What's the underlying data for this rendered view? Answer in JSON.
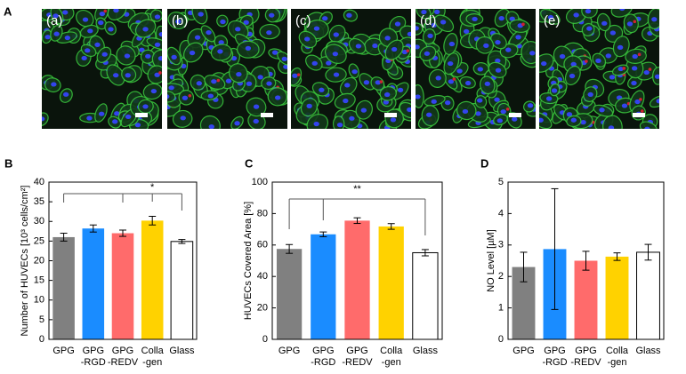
{
  "figure": {
    "panel_a": {
      "label": "A",
      "image_labels": [
        "(a)",
        "(b)",
        "(c)",
        "(d)",
        "(e)"
      ]
    }
  },
  "chart_data": [
    {
      "type": "bar",
      "panel_label": "B",
      "y_label": "Number of HUVECs [10³ cells/cm²]",
      "categories": [
        [
          "GPG"
        ],
        [
          "GPG",
          "-RGD"
        ],
        [
          "GPG",
          "-REDV"
        ],
        [
          "Colla",
          "-gen"
        ],
        [
          "Glass"
        ]
      ],
      "values": [
        26,
        28.2,
        27,
        30.2,
        24.9
      ],
      "errors": [
        1.0,
        0.9,
        0.8,
        1.1,
        0.5
      ],
      "colors": [
        "#808080",
        "#1a8cff",
        "#ff6b6b",
        "#ffd200",
        "#ffffff"
      ],
      "ylim": [
        0,
        40
      ],
      "yticks": [
        0,
        5,
        10,
        15,
        20,
        25,
        30,
        35,
        40
      ],
      "annotations": [
        "*"
      ]
    },
    {
      "type": "bar",
      "panel_label": "C",
      "y_label": "HUVECs Covered Area [%]",
      "categories": [
        [
          "GPG"
        ],
        [
          "GPG",
          "-RGD"
        ],
        [
          "GPG",
          "-REDV"
        ],
        [
          "Colla",
          "-gen"
        ],
        [
          "Glass"
        ]
      ],
      "values": [
        57.5,
        66.8,
        75.5,
        71.8,
        55.1
      ],
      "errors": [
        2.8,
        1.5,
        1.8,
        1.8,
        2.0
      ],
      "colors": [
        "#808080",
        "#1a8cff",
        "#ff6b6b",
        "#ffd200",
        "#ffffff"
      ],
      "ylim": [
        0,
        100
      ],
      "yticks": [
        0,
        20,
        40,
        60,
        80,
        100
      ],
      "annotations": [
        "**"
      ]
    },
    {
      "type": "bar",
      "panel_label": "D",
      "y_label": "NO Level [µM]",
      "categories": [
        [
          "GPG"
        ],
        [
          "GPG",
          "-RGD"
        ],
        [
          "GPG",
          "-REDV"
        ],
        [
          "Colla",
          "-gen"
        ],
        [
          "Glass"
        ]
      ],
      "values": [
        2.3,
        2.87,
        2.5,
        2.63,
        2.77
      ],
      "errors": [
        0.47,
        1.92,
        0.3,
        0.12,
        0.25
      ],
      "colors": [
        "#808080",
        "#1a8cff",
        "#ff6b6b",
        "#ffd200",
        "#ffffff"
      ],
      "ylim": [
        0,
        5
      ],
      "yticks": [
        0,
        1,
        2,
        3,
        4,
        5
      ],
      "annotations": []
    }
  ]
}
